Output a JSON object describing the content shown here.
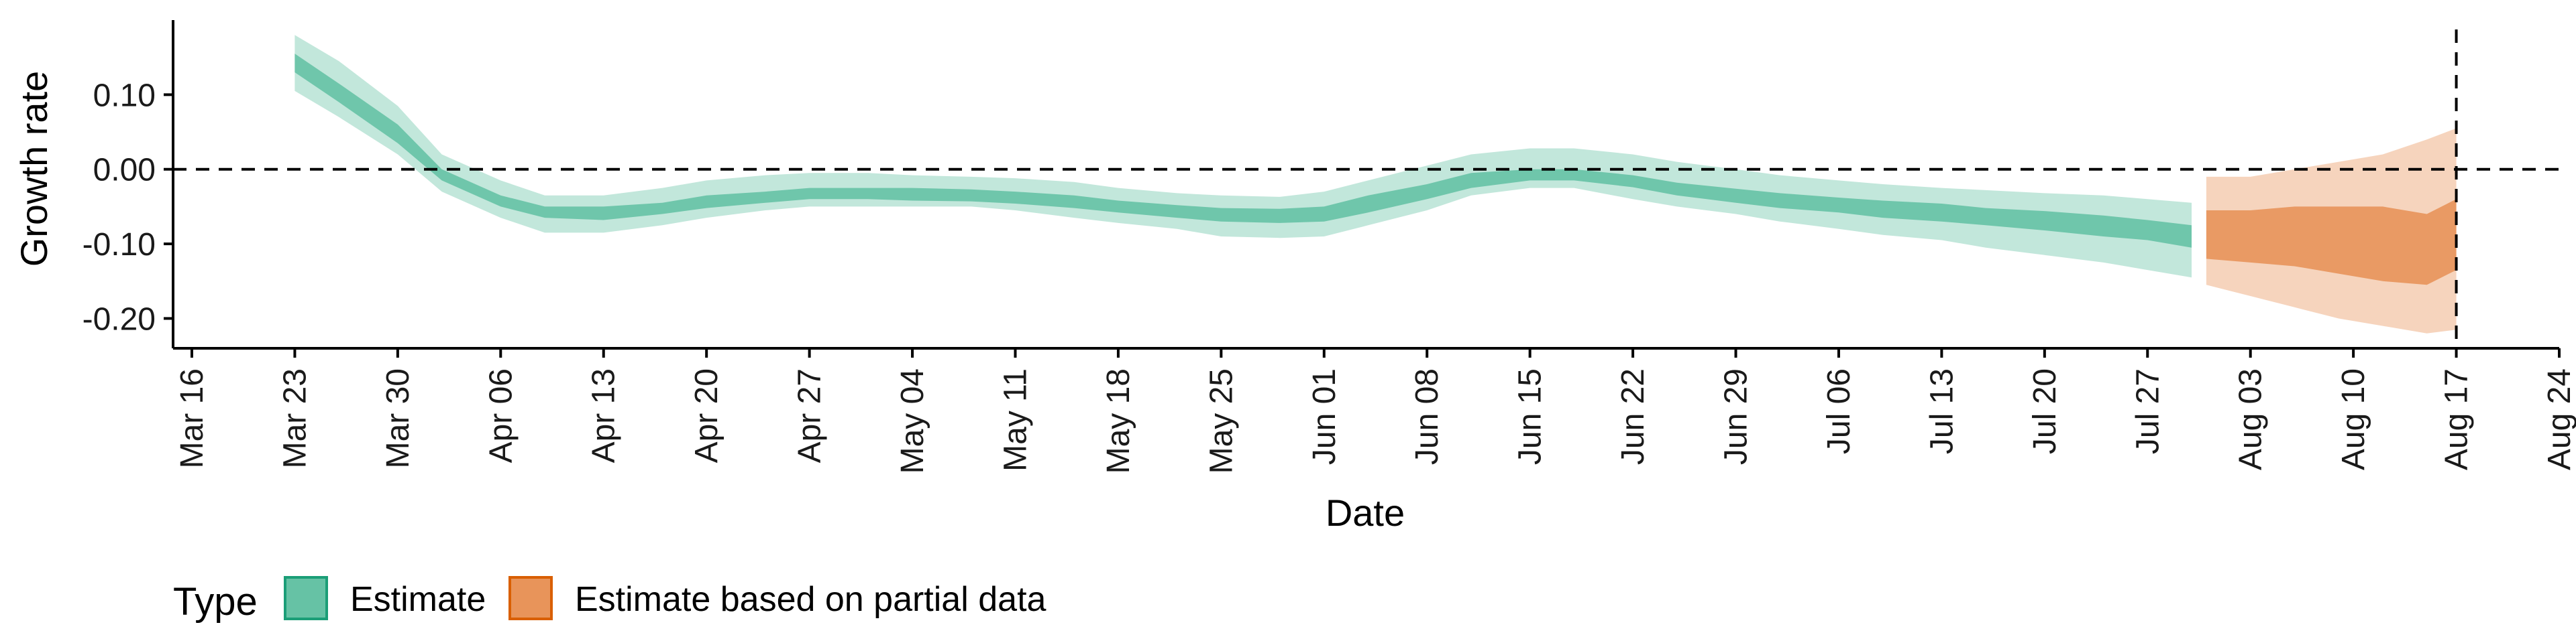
{
  "chart_data": {
    "type": "area",
    "xlabel": "Date",
    "ylabel": "Growth rate",
    "x_start": "2020-03-16",
    "x_end": "2020-08-24",
    "ylim": [
      -0.24,
      0.2
    ],
    "x_ticks": [
      "Mar 16",
      "Mar 23",
      "Mar 30",
      "Apr 06",
      "Apr 13",
      "Apr 20",
      "Apr 27",
      "May 04",
      "May 11",
      "May 18",
      "May 25",
      "Jun 01",
      "Jun 08",
      "Jun 15",
      "Jun 22",
      "Jun 29",
      "Jul 06",
      "Jul 13",
      "Jul 20",
      "Jul 27",
      "Aug 03",
      "Aug 10",
      "Aug 17",
      "Aug 24"
    ],
    "y_ticks": [
      {
        "value": 0.1,
        "label": "0.10"
      },
      {
        "value": 0.0,
        "label": "0.00"
      },
      {
        "value": -0.1,
        "label": "-0.10"
      },
      {
        "value": -0.2,
        "label": "-0.20"
      }
    ],
    "hline": 0.0,
    "vline": "Aug 17",
    "legend": {
      "title": "Type",
      "position": "bottom-left",
      "entries": [
        {
          "label": "Estimate",
          "color": "#66c2a5"
        },
        {
          "label": "Estimate based on partial data",
          "color": "#e8945a"
        }
      ]
    },
    "series": [
      {
        "name": "Estimate",
        "color": "#66c2a5",
        "x": [
          "Mar 23",
          "Mar 26",
          "Mar 30",
          "Apr 02",
          "Apr 06",
          "Apr 09",
          "Apr 13",
          "Apr 17",
          "Apr 20",
          "Apr 24",
          "Apr 27",
          "May 01",
          "May 04",
          "May 08",
          "May 11",
          "May 15",
          "May 18",
          "May 22",
          "May 25",
          "May 29",
          "Jun 01",
          "Jun 04",
          "Jun 08",
          "Jun 11",
          "Jun 15",
          "Jun 18",
          "Jun 22",
          "Jun 25",
          "Jun 29",
          "Jul 02",
          "Jul 06",
          "Jul 09",
          "Jul 13",
          "Jul 16",
          "Jul 20",
          "Jul 24",
          "Jul 27",
          "Jul 30"
        ],
        "lower_90": [
          0.105,
          0.07,
          0.02,
          -0.03,
          -0.065,
          -0.085,
          -0.085,
          -0.075,
          -0.065,
          -0.055,
          -0.05,
          -0.05,
          -0.05,
          -0.05,
          -0.055,
          -0.065,
          -0.072,
          -0.08,
          -0.09,
          -0.092,
          -0.09,
          -0.075,
          -0.055,
          -0.035,
          -0.025,
          -0.025,
          -0.04,
          -0.05,
          -0.06,
          -0.07,
          -0.08,
          -0.088,
          -0.095,
          -0.105,
          -0.115,
          -0.125,
          -0.135,
          -0.145
        ],
        "lower_50": [
          0.13,
          0.09,
          0.035,
          -0.015,
          -0.05,
          -0.065,
          -0.068,
          -0.06,
          -0.052,
          -0.045,
          -0.04,
          -0.04,
          -0.042,
          -0.043,
          -0.046,
          -0.052,
          -0.058,
          -0.065,
          -0.07,
          -0.072,
          -0.07,
          -0.058,
          -0.04,
          -0.025,
          -0.015,
          -0.015,
          -0.024,
          -0.035,
          -0.045,
          -0.052,
          -0.058,
          -0.065,
          -0.07,
          -0.075,
          -0.082,
          -0.09,
          -0.095,
          -0.105
        ],
        "upper_50": [
          0.155,
          0.115,
          0.06,
          0.0,
          -0.035,
          -0.05,
          -0.05,
          -0.045,
          -0.035,
          -0.03,
          -0.025,
          -0.025,
          -0.025,
          -0.027,
          -0.03,
          -0.035,
          -0.042,
          -0.048,
          -0.052,
          -0.053,
          -0.05,
          -0.035,
          -0.02,
          -0.005,
          0.0,
          0.0,
          -0.008,
          -0.018,
          -0.026,
          -0.032,
          -0.038,
          -0.042,
          -0.046,
          -0.052,
          -0.056,
          -0.062,
          -0.068,
          -0.075
        ],
        "upper_90": [
          0.18,
          0.145,
          0.085,
          0.02,
          -0.015,
          -0.035,
          -0.035,
          -0.025,
          -0.015,
          -0.008,
          -0.005,
          -0.005,
          -0.008,
          -0.01,
          -0.012,
          -0.017,
          -0.025,
          -0.032,
          -0.035,
          -0.037,
          -0.03,
          -0.015,
          0.005,
          0.02,
          0.028,
          0.028,
          0.02,
          0.01,
          0.0,
          -0.008,
          -0.015,
          -0.02,
          -0.025,
          -0.028,
          -0.032,
          -0.035,
          -0.04,
          -0.045
        ]
      },
      {
        "name": "Estimate based on partial data",
        "color": "#e8945a",
        "x": [
          "Jul 31",
          "Aug 03",
          "Aug 06",
          "Aug 09",
          "Aug 12",
          "Aug 15",
          "Aug 17"
        ],
        "lower_90": [
          -0.155,
          -0.17,
          -0.185,
          -0.2,
          -0.21,
          -0.22,
          -0.215
        ],
        "lower_50": [
          -0.12,
          -0.125,
          -0.13,
          -0.14,
          -0.15,
          -0.155,
          -0.135
        ],
        "upper_50": [
          -0.055,
          -0.055,
          -0.05,
          -0.05,
          -0.05,
          -0.06,
          -0.04
        ],
        "upper_90": [
          -0.01,
          -0.01,
          0.0,
          0.01,
          0.02,
          0.04,
          0.055
        ]
      }
    ]
  }
}
